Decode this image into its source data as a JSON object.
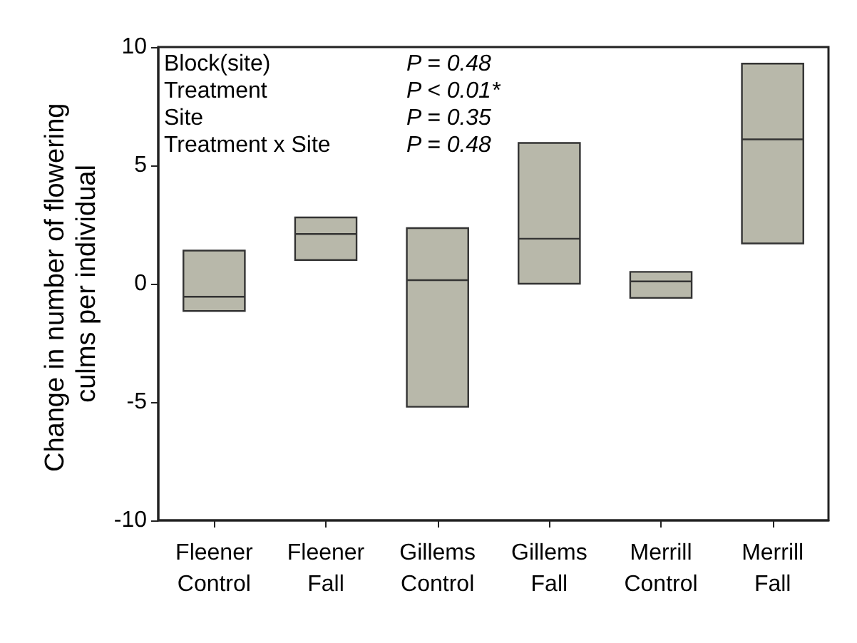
{
  "chart_data": {
    "type": "box",
    "ylabel": "Change in number of flowering culms per individual",
    "categories": [
      "Fleener\nControl",
      "Fleener\nFall",
      "Gillems\nControl",
      "Gillems\nFall",
      "Merrill\nControl",
      "Merrill\nFall"
    ],
    "boxes": [
      {
        "low": -1.15,
        "q1": -1.15,
        "median": -0.55,
        "q3": 1.4,
        "high": 1.4
      },
      {
        "low": 1.0,
        "q1": 1.0,
        "median": 2.1,
        "q3": 2.8,
        "high": 2.8
      },
      {
        "low": -5.2,
        "q1": -5.2,
        "median": 0.15,
        "q3": 2.35,
        "high": 2.35
      },
      {
        "low": 0.0,
        "q1": 0.0,
        "median": 1.9,
        "q3": 5.95,
        "high": 5.95
      },
      {
        "low": -0.6,
        "q1": -0.6,
        "median": 0.1,
        "q3": 0.5,
        "high": 0.5
      },
      {
        "low": 1.7,
        "q1": 1.7,
        "median": 6.1,
        "q3": 9.3,
        "high": 9.3
      }
    ],
    "color": "#b8b8aa",
    "ylim": [
      -10,
      10
    ],
    "yticks": [
      -10,
      -5,
      0,
      5,
      10
    ],
    "grid": false,
    "annotations": [
      "Block(site)",
      "P = 0.48",
      "Treatment",
      "P < 0.01*",
      "Site",
      "P = 0.35",
      "Treatment x Site",
      "P = 0.48"
    ]
  }
}
